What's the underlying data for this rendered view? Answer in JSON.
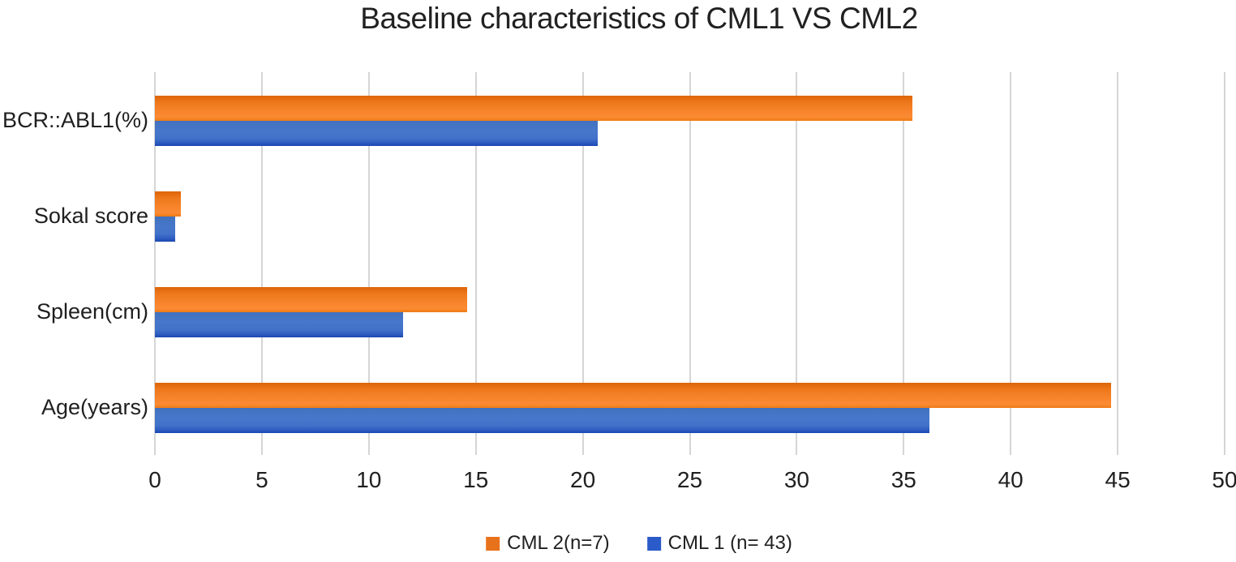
{
  "chart_data": {
    "type": "bar",
    "orientation": "horizontal",
    "title": "Baseline characteristics of CML1 VS CML2",
    "categories": [
      "BCR::ABL1(%)",
      "Sokal score",
      "Spleen(cm)",
      "Age(years)"
    ],
    "category_order": "top_to_bottom",
    "series": [
      {
        "name": "CML 2(n=7)",
        "color": "#e8721b",
        "values": [
          35.4,
          1.2,
          14.6,
          44.7
        ]
      },
      {
        "name": "CML 1 (n= 43)",
        "color": "#2b5bc8",
        "values": [
          20.7,
          0.95,
          11.6,
          36.2
        ]
      }
    ],
    "xlabel": "",
    "ylabel": "",
    "xlim": [
      0,
      50
    ],
    "x_ticks": [
      0,
      5,
      10,
      15,
      20,
      25,
      30,
      35,
      40,
      45,
      50
    ],
    "grid": "vertical-gridlines",
    "legend_position": "bottom-center"
  },
  "colors": {
    "cml2_orange": "#e8721b",
    "cml1_blue": "#2b5bc8",
    "gridline": "#d5d5d5",
    "text": "#1f1f1f"
  }
}
